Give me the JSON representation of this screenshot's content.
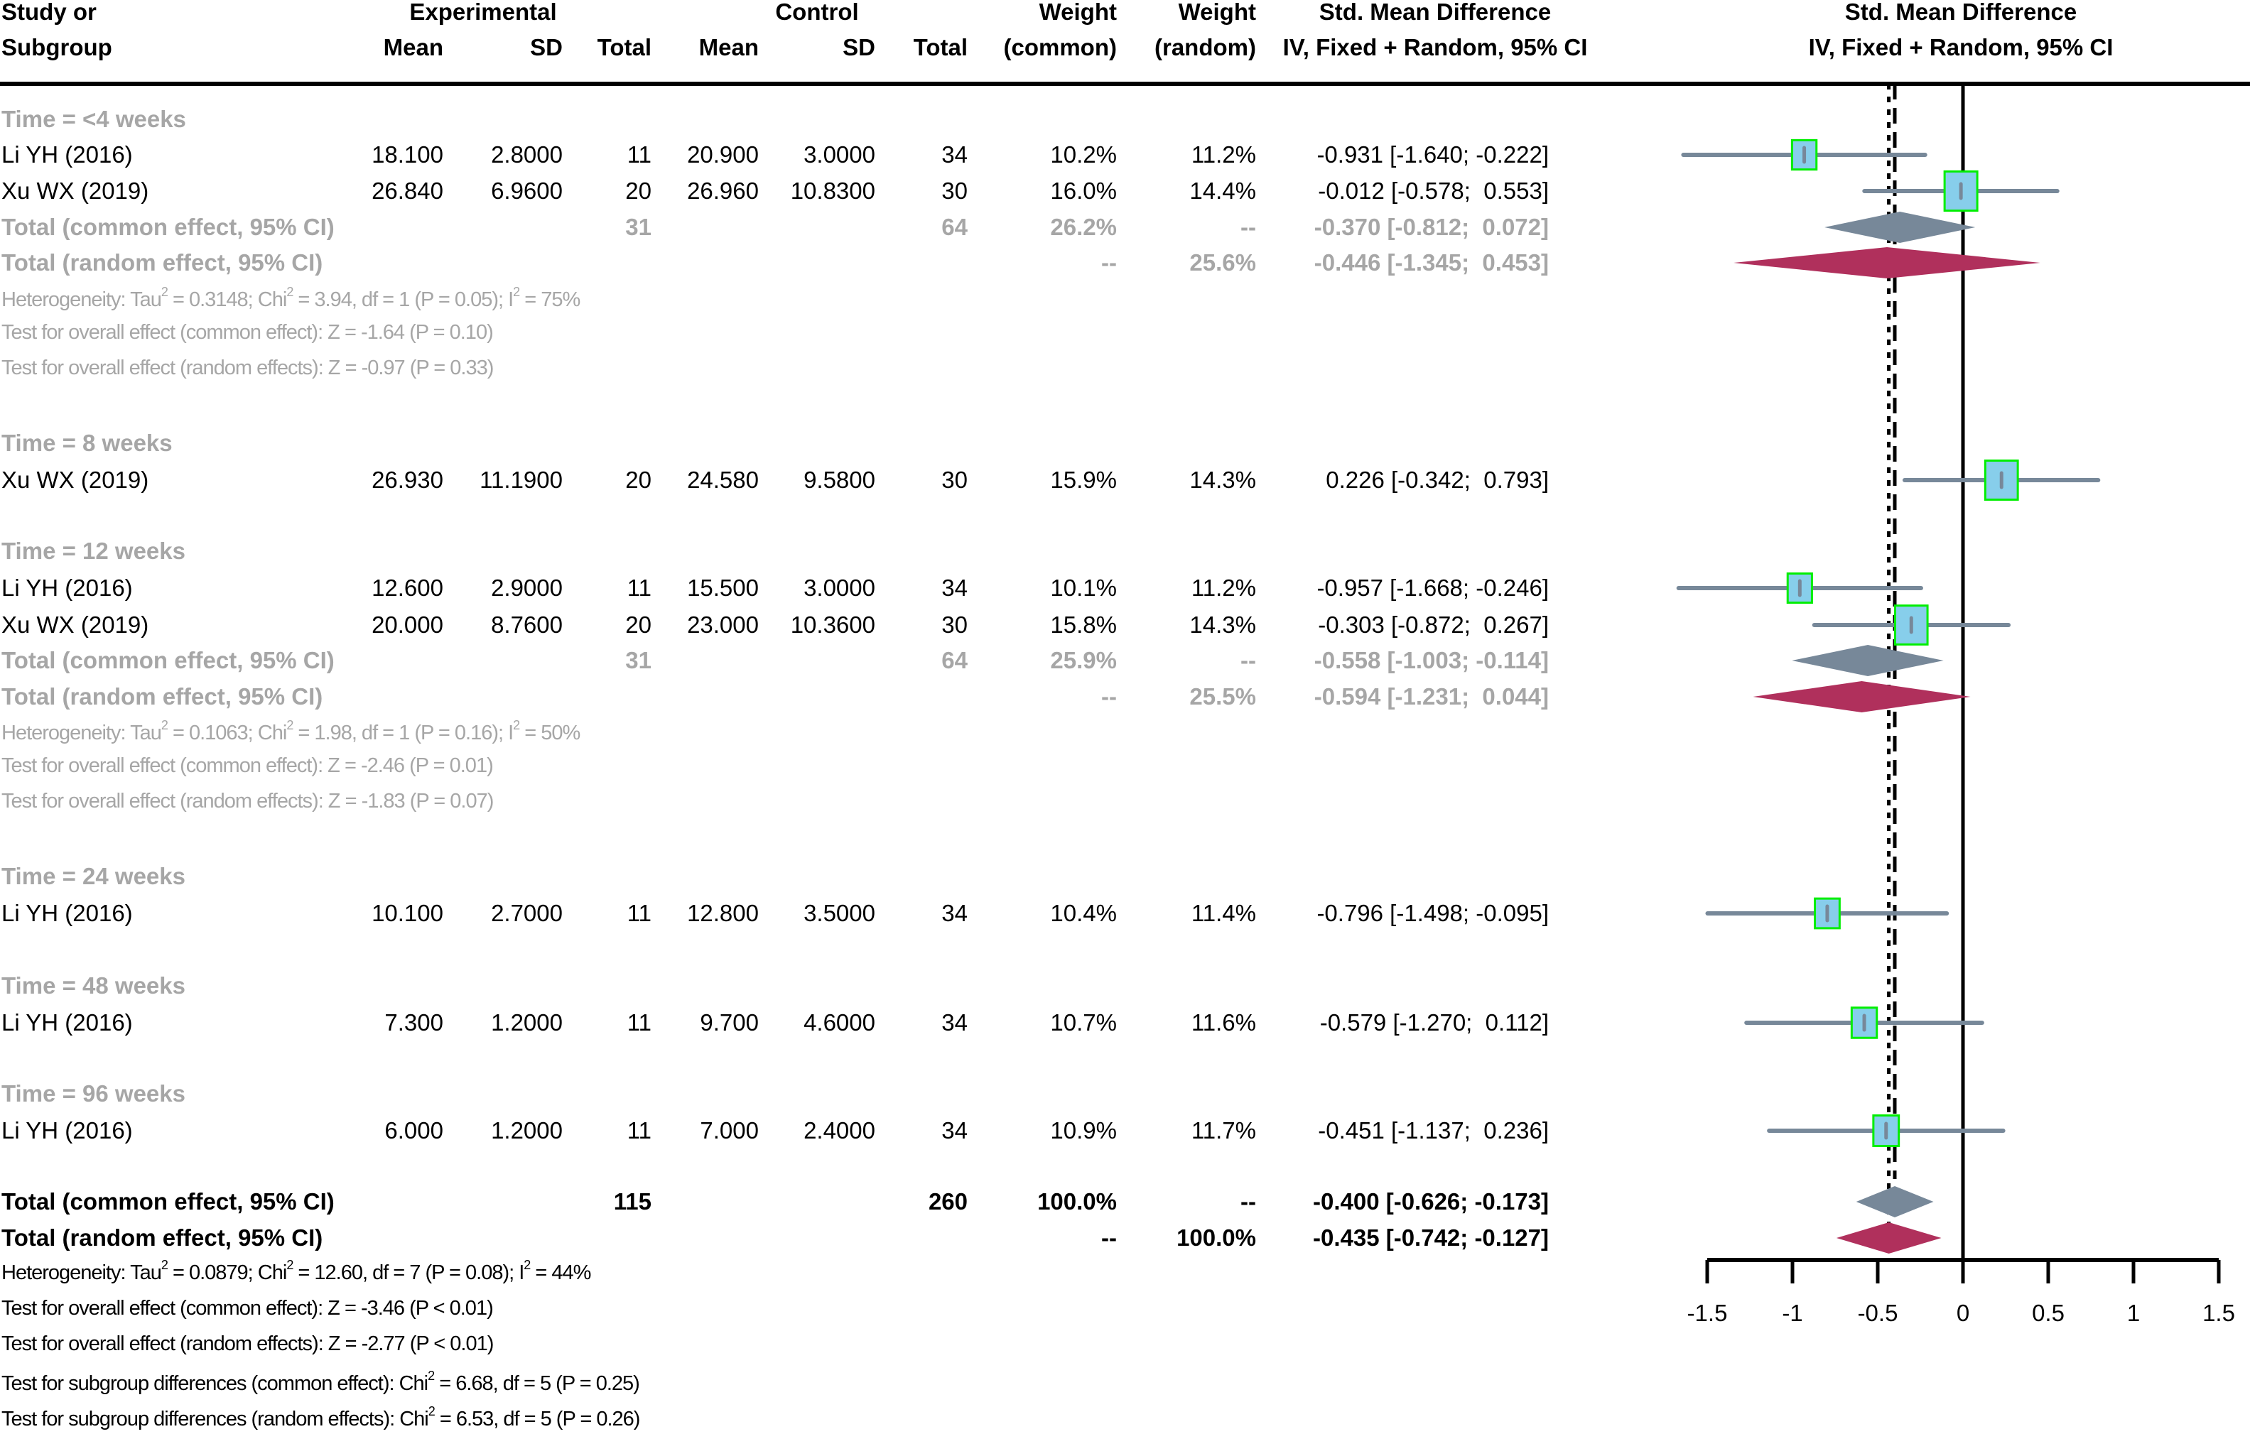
{
  "headers": {
    "study_l1": "Study or",
    "study_l2": "Subgroup",
    "experimental": "Experimental",
    "control": "Control",
    "mean": "Mean",
    "sd": "SD",
    "total": "Total",
    "weight": "Weight",
    "weight_common": "(common)",
    "weight_random": "(random)",
    "smd_l1": "Std. Mean Difference",
    "smd_l2": "IV, Fixed + Random, 95% CI",
    "plot_l1": "Std. Mean Difference",
    "plot_l2": "IV, Fixed + Random, 95% CI"
  },
  "rows": [
    {
      "type": "group",
      "label": "Time = <4 weeks"
    },
    {
      "type": "study",
      "label": "Li YH (2016)",
      "e_mean": "18.100",
      "e_sd": "2.8000",
      "e_n": "11",
      "c_mean": "20.900",
      "c_sd": "3.0000",
      "c_n": "34",
      "w_common": "10.2%",
      "w_random": "11.2%",
      "ci": "-0.931 [-1.640; -0.222]",
      "est": -0.931,
      "lo": -1.64,
      "hi": -0.222
    },
    {
      "type": "study",
      "label": "Xu WX (2019)",
      "e_mean": "26.840",
      "e_sd": "6.9600",
      "e_n": "20",
      "c_mean": "26.960",
      "c_sd": "10.8300",
      "c_n": "30",
      "w_common": "16.0%",
      "w_random": "14.4%",
      "ci": "-0.012 [-0.578;  0.553]",
      "est": -0.012,
      "lo": -0.578,
      "hi": 0.553
    },
    {
      "type": "sub_common",
      "label": "Total (common effect, 95% CI)",
      "e_n": "31",
      "c_n": "64",
      "w_common": "26.2%",
      "w_random": "--",
      "ci": "-0.370 [-0.812;  0.072]",
      "est": -0.37,
      "lo": -0.812,
      "hi": 0.072
    },
    {
      "type": "sub_random",
      "label": "Total (random effect, 95% CI)",
      "w_common": "--",
      "w_random": "25.6%",
      "ci": "-0.446 [-1.345;  0.453]",
      "est": -0.446,
      "lo": -1.345,
      "hi": 0.453
    },
    {
      "type": "het",
      "html": "Heterogeneity: Tau<sup>2</sup> = 0.3148; Chi<sup>2</sup> = 3.94, df = 1 (P = 0.05); I<sup>2</sup> = 75%"
    },
    {
      "type": "note",
      "label": "Test for overall effect (common effect): Z = -1.64 (P = 0.10)"
    },
    {
      "type": "note",
      "label": "Test for overall effect (random effects): Z = -0.97 (P = 0.33)"
    },
    {
      "type": "group",
      "label": "Time = 8 weeks"
    },
    {
      "type": "study",
      "label": "Xu WX (2019)",
      "e_mean": "26.930",
      "e_sd": "11.1900",
      "e_n": "20",
      "c_mean": "24.580",
      "c_sd": "9.5800",
      "c_n": "30",
      "w_common": "15.9%",
      "w_random": "14.3%",
      "ci": "0.226 [-0.342;  0.793]",
      "est": 0.226,
      "lo": -0.342,
      "hi": 0.793
    },
    {
      "type": "group",
      "label": "Time = 12 weeks"
    },
    {
      "type": "study",
      "label": "Li YH (2016)",
      "e_mean": "12.600",
      "e_sd": "2.9000",
      "e_n": "11",
      "c_mean": "15.500",
      "c_sd": "3.0000",
      "c_n": "34",
      "w_common": "10.1%",
      "w_random": "11.2%",
      "ci": "-0.957 [-1.668; -0.246]",
      "est": -0.957,
      "lo": -1.668,
      "hi": -0.246
    },
    {
      "type": "study",
      "label": "Xu WX (2019)",
      "e_mean": "20.000",
      "e_sd": "8.7600",
      "e_n": "20",
      "c_mean": "23.000",
      "c_sd": "10.3600",
      "c_n": "30",
      "w_common": "15.8%",
      "w_random": "14.3%",
      "ci": "-0.303 [-0.872;  0.267]",
      "est": -0.303,
      "lo": -0.872,
      "hi": 0.267
    },
    {
      "type": "sub_common",
      "label": "Total (common effect, 95% CI)",
      "e_n": "31",
      "c_n": "64",
      "w_common": "25.9%",
      "w_random": "--",
      "ci": "-0.558 [-1.003; -0.114]",
      "est": -0.558,
      "lo": -1.003,
      "hi": -0.114
    },
    {
      "type": "sub_random",
      "label": "Total (random effect, 95% CI)",
      "w_common": "--",
      "w_random": "25.5%",
      "ci": "-0.594 [-1.231;  0.044]",
      "est": -0.594,
      "lo": -1.231,
      "hi": 0.044
    },
    {
      "type": "het",
      "html": "Heterogeneity: Tau<sup>2</sup> = 0.1063; Chi<sup>2</sup> = 1.98, df = 1 (P = 0.16); I<sup>2</sup> = 50%"
    },
    {
      "type": "note",
      "label": "Test for overall effect (common effect): Z = -2.46 (P = 0.01)"
    },
    {
      "type": "note",
      "label": "Test for overall effect (random effects): Z = -1.83 (P = 0.07)"
    },
    {
      "type": "group",
      "label": "Time = 24 weeks"
    },
    {
      "type": "study",
      "label": "Li YH (2016)",
      "e_mean": "10.100",
      "e_sd": "2.7000",
      "e_n": "11",
      "c_mean": "12.800",
      "c_sd": "3.5000",
      "c_n": "34",
      "w_common": "10.4%",
      "w_random": "11.4%",
      "ci": "-0.796 [-1.498; -0.095]",
      "est": -0.796,
      "lo": -1.498,
      "hi": -0.095
    },
    {
      "type": "group",
      "label": "Time = 48 weeks"
    },
    {
      "type": "study",
      "label": "Li YH (2016)",
      "e_mean": "7.300",
      "e_sd": "1.2000",
      "e_n": "11",
      "c_mean": "9.700",
      "c_sd": "4.6000",
      "c_n": "34",
      "w_common": "10.7%",
      "w_random": "11.6%",
      "ci": "-0.579 [-1.270;  0.112]",
      "est": -0.579,
      "lo": -1.27,
      "hi": 0.112
    },
    {
      "type": "group",
      "label": "Time = 96 weeks"
    },
    {
      "type": "study",
      "label": "Li YH (2016)",
      "e_mean": "6.000",
      "e_sd": "1.2000",
      "e_n": "11",
      "c_mean": "7.000",
      "c_sd": "2.4000",
      "c_n": "34",
      "w_common": "10.9%",
      "w_random": "11.7%",
      "ci": "-0.451 [-1.137;  0.236]",
      "est": -0.451,
      "lo": -1.137,
      "hi": 0.236
    },
    {
      "type": "overall_common",
      "label": "Total (common effect, 95% CI)",
      "e_n": "115",
      "c_n": "260",
      "w_common": "100.0%",
      "w_random": "--",
      "ci": "-0.400 [-0.626; -0.173]",
      "est": -0.4,
      "lo": -0.626,
      "hi": -0.173
    },
    {
      "type": "overall_random",
      "label": "Total (random effect, 95% CI)",
      "w_common": "--",
      "w_random": "100.0%",
      "ci": "-0.435 [-0.742; -0.127]",
      "est": -0.435,
      "lo": -0.742,
      "hi": -0.127
    },
    {
      "type": "het_overall",
      "html": "Heterogeneity: Tau<sup>2</sup> = 0.0879; Chi<sup>2</sup> = 12.60, df = 7 (P = 0.08); I<sup>2</sup> = 44%"
    },
    {
      "type": "note_overall",
      "label": "Test for overall effect (common effect): Z = -3.46 (P < 0.01)"
    },
    {
      "type": "note_overall",
      "label": "Test for overall effect (random effects): Z = -2.77 (P < 0.01)"
    },
    {
      "type": "note_overall",
      "html": "Test for subgroup differences (common effect): Chi<sup>2</sup> = 6.68, df = 5 (P = 0.25)"
    },
    {
      "type": "note_overall",
      "html": "Test for subgroup differences (random effects): Chi<sup>2</sup> = 6.53, df = 5 (P = 0.26)"
    }
  ],
  "colors": {
    "square_fill": "#87ceeb",
    "square_border": "#00ee00",
    "ci_line": "#778899",
    "common_diamond": "#778899",
    "random_diamond": "#b0305c",
    "grey_text": "#a6a6a6"
  },
  "chart_data": {
    "type": "forest",
    "title": "Std. Mean Difference IV, Fixed + Random, 95% CI",
    "xlabel": "",
    "xlim": [
      -1.5,
      1.5
    ],
    "xticks": [
      "-1.5",
      "-1",
      "-0.5",
      "0",
      "0.5",
      "1",
      "1.5"
    ],
    "xtick_values": [
      -1.5,
      -1,
      -0.5,
      0,
      0.5,
      1,
      1.5
    ],
    "reference_line": 0,
    "common_effect_line": -0.4,
    "random_effect_line": -0.435,
    "series": [
      {
        "name": "Li YH (2016) <4 weeks",
        "estimate": -0.931,
        "lower": -1.64,
        "upper": -0.222,
        "weight_common": 10.2
      },
      {
        "name": "Xu WX (2019) <4 weeks",
        "estimate": -0.012,
        "lower": -0.578,
        "upper": 0.553,
        "weight_common": 16.0
      },
      {
        "name": "Subtotal common <4 weeks",
        "estimate": -0.37,
        "lower": -0.812,
        "upper": 0.072
      },
      {
        "name": "Subtotal random <4 weeks",
        "estimate": -0.446,
        "lower": -1.345,
        "upper": 0.453
      },
      {
        "name": "Xu WX (2019) 8 weeks",
        "estimate": 0.226,
        "lower": -0.342,
        "upper": 0.793,
        "weight_common": 15.9
      },
      {
        "name": "Li YH (2016) 12 weeks",
        "estimate": -0.957,
        "lower": -1.668,
        "upper": -0.246,
        "weight_common": 10.1
      },
      {
        "name": "Xu WX (2019) 12 weeks",
        "estimate": -0.303,
        "lower": -0.872,
        "upper": 0.267,
        "weight_common": 15.8
      },
      {
        "name": "Subtotal common 12 weeks",
        "estimate": -0.558,
        "lower": -1.003,
        "upper": -0.114
      },
      {
        "name": "Subtotal random 12 weeks",
        "estimate": -0.594,
        "lower": -1.231,
        "upper": 0.044
      },
      {
        "name": "Li YH (2016) 24 weeks",
        "estimate": -0.796,
        "lower": -1.498,
        "upper": -0.095,
        "weight_common": 10.4
      },
      {
        "name": "Li YH (2016) 48 weeks",
        "estimate": -0.579,
        "lower": -1.27,
        "upper": 0.112,
        "weight_common": 10.7
      },
      {
        "name": "Li YH (2016) 96 weeks",
        "estimate": -0.451,
        "lower": -1.137,
        "upper": 0.236,
        "weight_common": 10.9
      },
      {
        "name": "Total common",
        "estimate": -0.4,
        "lower": -0.626,
        "upper": -0.173
      },
      {
        "name": "Total random",
        "estimate": -0.435,
        "lower": -0.742,
        "upper": -0.127
      }
    ]
  }
}
